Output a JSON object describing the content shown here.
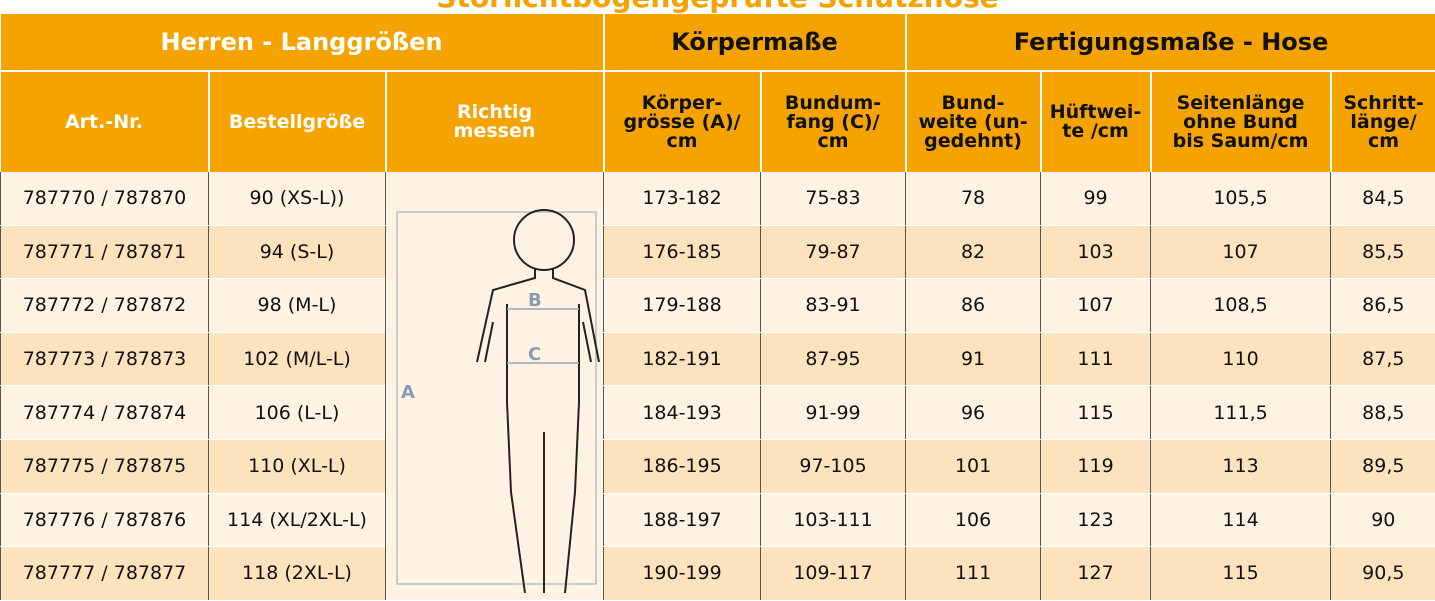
{
  "title": "Störlichtbogengeprüfte Schutzhose",
  "table": {
    "group_headers": [
      "Herren - Langgrößen",
      "Körpermaße",
      "Fertigungsmaße - Hose"
    ],
    "column_headers": [
      "Art.-Nr.",
      "Bestellgröße",
      "Richtig\nmessen",
      "Körper-\ngrösse (A)/\ncm",
      "Bundum-\nfang  (C)/\ncm",
      "Bund-\nweite (un-\ngedehnt)",
      "Hüftwei-\nte /cm",
      "Seitenlänge\nohne Bund\nbis Saum/cm",
      "Schritt-\nlänge/\ncm"
    ],
    "rows": [
      [
        "787770 / 787870",
        "90 (XS-L))",
        "173-182",
        "75-83",
        "78",
        "99",
        "105,5",
        "84,5"
      ],
      [
        "787771 / 787871",
        "94 (S-L)",
        "176-185",
        "79-87",
        "82",
        "103",
        "107",
        "85,5"
      ],
      [
        "787772 / 787872",
        "98 (M-L)",
        "179-188",
        "83-91",
        "86",
        "107",
        "108,5",
        "86,5"
      ],
      [
        "787773 / 787873",
        "102 (M/L-L)",
        "182-191",
        "87-95",
        "91",
        "111",
        "110",
        "87,5"
      ],
      [
        "787774 / 787874",
        "106 (L-L)",
        "184-193",
        "91-99",
        "96",
        "115",
        "111,5",
        "88,5"
      ],
      [
        "787775 / 787875",
        "110 (XL-L)",
        "186-195",
        "97-105",
        "101",
        "119",
        "113",
        "89,5"
      ],
      [
        "787776 / 787876",
        "114 (XL/2XL-L)",
        "188-197",
        "103-111",
        "106",
        "123",
        "114",
        "90"
      ],
      [
        "787777 / 787877",
        "118 (2XL-L)",
        "190-199",
        "109-117",
        "111",
        "127",
        "115",
        "90,5"
      ]
    ]
  },
  "figure": {
    "labels": [
      "A",
      "B",
      "C"
    ]
  }
}
